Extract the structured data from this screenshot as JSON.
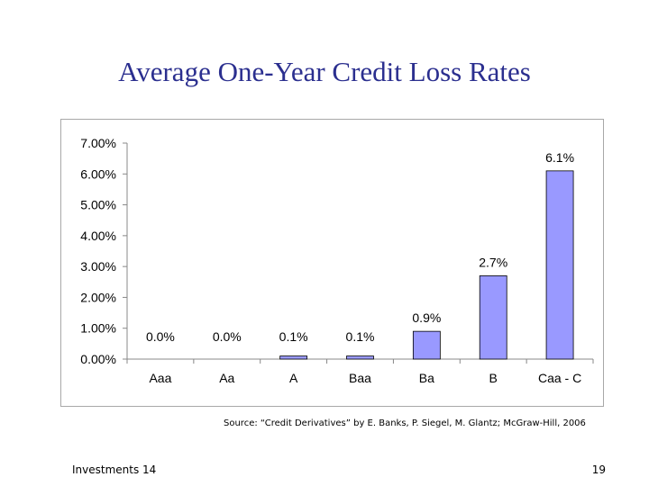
{
  "slide": {
    "title": "Average One-Year Credit Loss Rates",
    "source": "Source: “Credit Derivatives” by E. Banks, P. Siegel, M. Glantz; McGraw-Hill, 2006",
    "footer_left": "Investments 14",
    "page_number": "19"
  },
  "chart_data": {
    "type": "bar",
    "title": "",
    "xlabel": "",
    "ylabel": "",
    "categories": [
      "Aaa",
      "Aa",
      "A",
      "Baa",
      "Ba",
      "B",
      "Caa - C"
    ],
    "values": [
      0.0,
      0.0,
      0.1,
      0.1,
      0.9,
      2.7,
      6.1
    ],
    "data_labels": [
      "0.0%",
      "0.0%",
      "0.1%",
      "0.1%",
      "0.9%",
      "2.7%",
      "6.1%"
    ],
    "ylim": [
      0,
      7
    ],
    "yticks": [
      0,
      1,
      2,
      3,
      4,
      5,
      6,
      7
    ],
    "ytick_labels": [
      "0.00%",
      "1.00%",
      "2.00%",
      "3.00%",
      "4.00%",
      "5.00%",
      "6.00%",
      "7.00%"
    ],
    "grid": false,
    "legend": "none",
    "colors": {
      "bar_fill": "#9999ff",
      "bar_stroke": "#000000",
      "axis": "#888888"
    }
  }
}
